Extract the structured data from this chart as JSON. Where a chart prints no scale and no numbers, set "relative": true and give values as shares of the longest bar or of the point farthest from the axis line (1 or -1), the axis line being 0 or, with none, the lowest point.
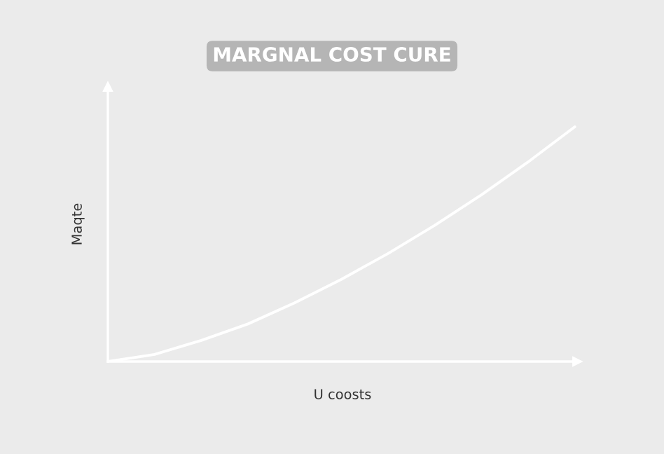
{
  "chart_data": {
    "type": "line",
    "title": "MARGNAL COST CURE",
    "xlabel": "U coosts",
    "ylabel": "Maqte",
    "relative": true,
    "categories": [
      null,
      null,
      null,
      null,
      null,
      null,
      null,
      null,
      null,
      null,
      null
    ],
    "series": [
      {
        "color": "#ffffff",
        "values": [
          0,
          0.03,
          0.09,
          0.16,
          0.25,
          0.35,
          0.46,
          0.58,
          0.71,
          0.85,
          1.0
        ]
      }
    ],
    "legend": false,
    "marker": "none",
    "line_style": "solid"
  }
}
